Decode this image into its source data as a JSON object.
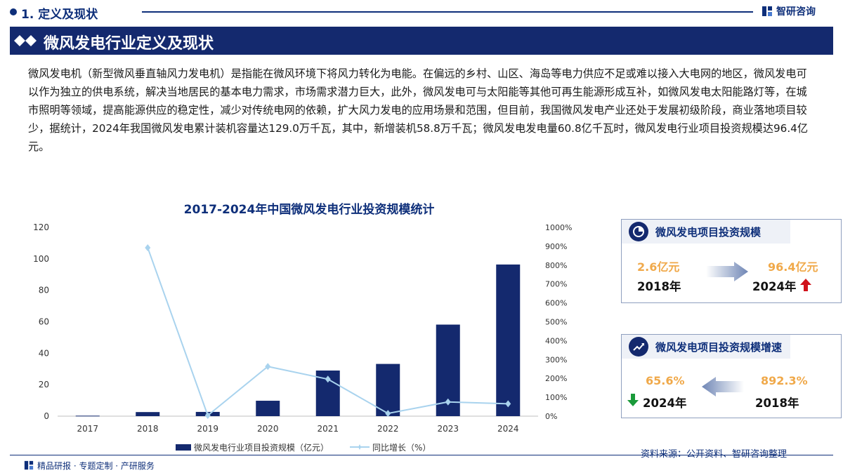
{
  "header": {
    "section_title": "1. 定义及现状",
    "brand": "智研咨询"
  },
  "banner": {
    "title": "微风发电行业定义及现状"
  },
  "intro_text": "微风发电机（新型微风垂直轴风力发电机）是指能在微风环境下将风力转化为电能。在偏远的乡村、山区、海岛等电力供应不足或难以接入大电网的地区，微风发电可以作为独立的供电系统，解决当地居民的基本电力需求，市场需求潜力巨大，此外，微风发电可与太阳能等其他可再生能源形成互补，如微风发电太阳能路灯等，在城市照明等领域，提高能源供应的稳定性，减少对传统电网的依赖，扩大风力发电的应用场景和范围，但目前，我国微风发电产业还处于发展初级阶段，商业落地项目较少，据统计，2024年我国微风发电累计装机容量达129.0万千瓦，其中，新增装机58.8万千瓦；微风发电发电量60.8亿千瓦时，微风发电行业项目投资规模达96.4亿元。",
  "chart_data": {
    "type": "bar",
    "title": "2017-2024年中国微风发电行业投资规模统计",
    "categories": [
      "2017",
      "2018",
      "2019",
      "2020",
      "2021",
      "2022",
      "2023",
      "2024"
    ],
    "series": [
      {
        "name": "微风发电行业项目投资规模（亿元）",
        "type": "bar",
        "axis": "left",
        "color": "#14296e",
        "values": [
          0.3,
          2.6,
          2.7,
          9.8,
          29.0,
          33.2,
          58.2,
          96.4
        ]
      },
      {
        "name": "同比增长（%）",
        "type": "line",
        "axis": "right",
        "color": "#a9d3ee",
        "values": [
          null,
          892.3,
          3.8,
          263.0,
          195.9,
          14.5,
          75.3,
          65.6
        ]
      }
    ],
    "y_left": {
      "ylim": [
        0,
        120
      ],
      "ticks": [
        "0",
        "20",
        "40",
        "60",
        "80",
        "100",
        "120"
      ]
    },
    "y_right": {
      "ylim": [
        0,
        1000
      ],
      "ticks": [
        "0%",
        "100%",
        "200%",
        "300%",
        "400%",
        "500%",
        "600%",
        "700%",
        "800%",
        "900%",
        "1000%"
      ]
    },
    "grid": false,
    "legend_position": "bottom"
  },
  "card_scale": {
    "title": "微风发电项目投资规模",
    "from_value": "2.6亿元",
    "from_year": "2018年",
    "to_value": "96.4亿元",
    "to_year": "2024年"
  },
  "card_growth": {
    "title": "微风发电项目投资规模增速",
    "left_value": "65.6%",
    "left_year": "2024年",
    "right_value": "892.3%",
    "right_year": "2018年"
  },
  "source": "资料来源：公开资料、智研咨询整理",
  "footer": "精品研报 · 专题定制 · 产研服务",
  "colors": {
    "brand": "#14296e",
    "accent_orange": "#f0a94a",
    "up_red": "#d0121b",
    "down_green": "#1a9a3a",
    "line_light_blue": "#a9d3ee"
  }
}
